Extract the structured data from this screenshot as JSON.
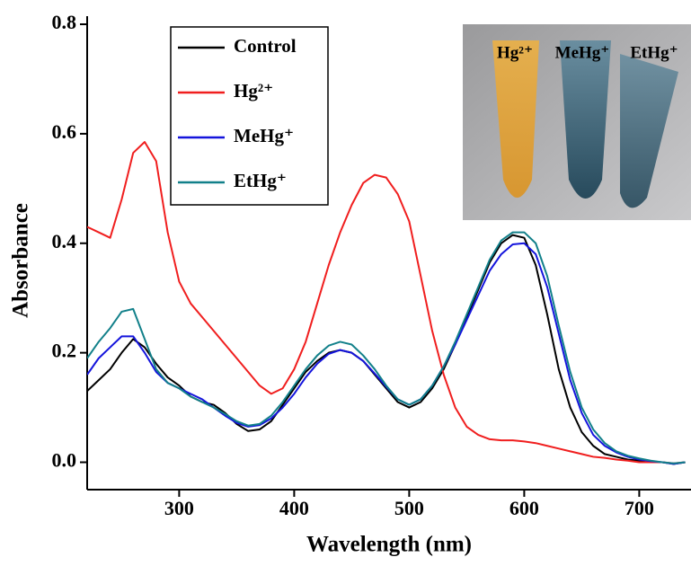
{
  "chart_data": {
    "type": "line",
    "x_label": "Wavelength (nm)",
    "y_label": "Absorbance",
    "x": [
      220,
      230,
      240,
      250,
      260,
      270,
      280,
      290,
      300,
      310,
      320,
      330,
      340,
      350,
      360,
      370,
      380,
      390,
      400,
      410,
      420,
      430,
      440,
      450,
      460,
      470,
      480,
      490,
      500,
      510,
      520,
      530,
      540,
      550,
      560,
      570,
      580,
      590,
      600,
      610,
      620,
      630,
      640,
      650,
      660,
      670,
      680,
      690,
      700,
      710,
      720,
      730,
      740
    ],
    "series": [
      {
        "name": "Control",
        "color": "#000000",
        "values": [
          0.13,
          0.15,
          0.17,
          0.2,
          0.225,
          0.21,
          0.18,
          0.155,
          0.14,
          0.12,
          0.11,
          0.105,
          0.09,
          0.07,
          0.057,
          0.06,
          0.075,
          0.105,
          0.135,
          0.165,
          0.185,
          0.2,
          0.205,
          0.2,
          0.185,
          0.16,
          0.135,
          0.11,
          0.1,
          0.11,
          0.135,
          0.17,
          0.215,
          0.265,
          0.315,
          0.365,
          0.4,
          0.415,
          0.41,
          0.36,
          0.27,
          0.17,
          0.1,
          0.055,
          0.03,
          0.015,
          0.01,
          0.005,
          0.003,
          0,
          0,
          -0.003,
          0
        ]
      },
      {
        "name": "Hg²⁺",
        "color": "#f01e1e",
        "values": [
          0.43,
          0.42,
          0.41,
          0.48,
          0.565,
          0.585,
          0.55,
          0.42,
          0.33,
          0.29,
          0.265,
          0.24,
          0.215,
          0.19,
          0.165,
          0.14,
          0.125,
          0.135,
          0.17,
          0.22,
          0.29,
          0.36,
          0.42,
          0.47,
          0.51,
          0.525,
          0.52,
          0.49,
          0.44,
          0.34,
          0.24,
          0.16,
          0.1,
          0.065,
          0.05,
          0.042,
          0.04,
          0.04,
          0.038,
          0.035,
          0.03,
          0.025,
          0.02,
          0.015,
          0.01,
          0.008,
          0.005,
          0.003,
          0,
          0,
          0,
          -0.002,
          0
        ]
      },
      {
        "name": "MeHg⁺",
        "color": "#1414dc",
        "values": [
          0.16,
          0.19,
          0.21,
          0.23,
          0.23,
          0.2,
          0.165,
          0.145,
          0.135,
          0.125,
          0.115,
          0.1,
          0.085,
          0.072,
          0.065,
          0.068,
          0.08,
          0.1,
          0.125,
          0.155,
          0.18,
          0.198,
          0.205,
          0.2,
          0.185,
          0.162,
          0.138,
          0.115,
          0.105,
          0.115,
          0.14,
          0.175,
          0.215,
          0.26,
          0.305,
          0.35,
          0.38,
          0.398,
          0.4,
          0.38,
          0.32,
          0.235,
          0.15,
          0.09,
          0.05,
          0.03,
          0.018,
          0.01,
          0.005,
          0.002,
          0,
          -0.003,
          0
        ]
      },
      {
        "name": "EtHg⁺",
        "color": "#12808a",
        "values": [
          0.19,
          0.22,
          0.245,
          0.275,
          0.28,
          0.225,
          0.17,
          0.145,
          0.135,
          0.12,
          0.11,
          0.1,
          0.088,
          0.075,
          0.067,
          0.07,
          0.085,
          0.11,
          0.14,
          0.17,
          0.195,
          0.213,
          0.22,
          0.215,
          0.195,
          0.17,
          0.14,
          0.115,
          0.105,
          0.115,
          0.14,
          0.175,
          0.22,
          0.27,
          0.32,
          0.37,
          0.405,
          0.42,
          0.42,
          0.4,
          0.34,
          0.25,
          0.165,
          0.1,
          0.06,
          0.035,
          0.02,
          0.012,
          0.007,
          0.003,
          0,
          -0.002,
          0
        ]
      }
    ],
    "xlim": [
      220,
      745
    ],
    "ylim": [
      -0.05,
      0.8
    ],
    "xticks": [
      300,
      400,
      500,
      600,
      700
    ],
    "yticks": [
      {
        "value": 0,
        "label": "0.0"
      },
      0.2,
      0.4,
      0.6,
      0.8
    ],
    "inset_labels": [
      "Hg²⁺",
      "MeHg⁺",
      "EtHg⁺"
    ]
  }
}
